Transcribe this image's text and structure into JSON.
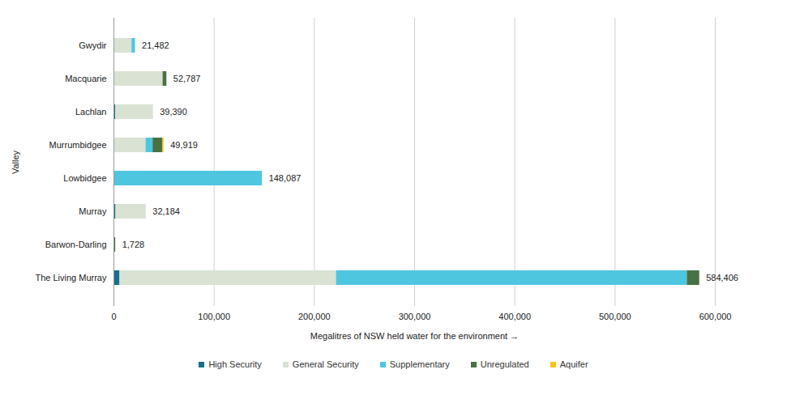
{
  "chart_data": {
    "type": "bar",
    "orientation": "horizontal",
    "stacked": true,
    "categories": [
      "Gwydir",
      "Macquarie",
      "Lachlan",
      "Murrumbidgee",
      "Lowbidgee",
      "Murray",
      "Barwon-Darling",
      "The Living Murray"
    ],
    "series": [
      {
        "name": "High Security",
        "color": "#16708a",
        "values": [
          500,
          0,
          1800,
          500,
          0,
          2000,
          0,
          6000
        ]
      },
      {
        "name": "General Security",
        "color": "#d9e2d3",
        "values": [
          17500,
          49000,
          37590,
          31500,
          0,
          30184,
          0,
          216000
        ]
      },
      {
        "name": "Supplementary",
        "color": "#4fc6e0",
        "values": [
          3482,
          0,
          0,
          7000,
          148087,
          0,
          0,
          350000
        ]
      },
      {
        "name": "Unregulated",
        "color": "#4a7043",
        "values": [
          0,
          3787,
          0,
          9500,
          0,
          0,
          1728,
          12406
        ]
      },
      {
        "name": "Aquifer",
        "color": "#f5c518",
        "values": [
          0,
          0,
          0,
          1419,
          0,
          0,
          0,
          0
        ]
      }
    ],
    "totals": [
      21482,
      52787,
      39390,
      49919,
      148087,
      32184,
      1728,
      584406
    ],
    "total_labels": [
      "21,482",
      "52,787",
      "39,390",
      "49,919",
      "148,087",
      "32,184",
      "1,728",
      "584,406"
    ],
    "x_label": "Megalitres of NSW held water for the environment",
    "y_label": "Valley",
    "xlim": [
      0,
      600000
    ],
    "xticks": [
      0,
      {
        "value": 100000,
        "label": "100,000"
      },
      {
        "value": 200000,
        "label": "200,000"
      },
      {
        "value": 300000,
        "label": "300,000"
      },
      {
        "value": 400000,
        "label": "400,000"
      },
      {
        "value": 500000,
        "label": "500,000"
      },
      {
        "value": 600000,
        "label": "600,000"
      }
    ],
    "grid": true,
    "legend": "bottom"
  }
}
